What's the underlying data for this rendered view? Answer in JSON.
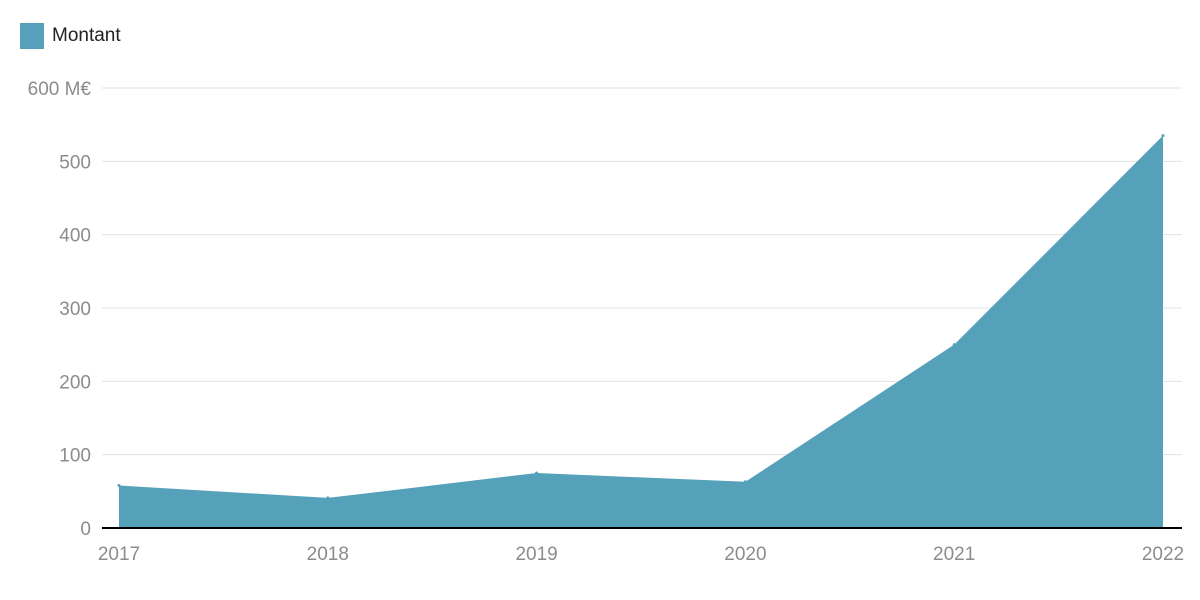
{
  "chart_data": {
    "type": "area",
    "x": [
      "2017",
      "2018",
      "2019",
      "2020",
      "2021",
      "2022"
    ],
    "series": [
      {
        "name": "Montant",
        "values": [
          58,
          41,
          75,
          63,
          250,
          535
        ]
      }
    ],
    "ylim": [
      0,
      600
    ],
    "yticks": [
      0,
      100,
      200,
      300,
      400,
      500,
      600
    ],
    "ytick_labels": [
      "0",
      "100",
      "200",
      "300",
      "400",
      "500",
      "600 M€"
    ],
    "grid": true,
    "legend_position": "top-left",
    "colors": {
      "area": "#55a1ba",
      "axis": "#000000",
      "grid": "#e3e3e3"
    }
  }
}
